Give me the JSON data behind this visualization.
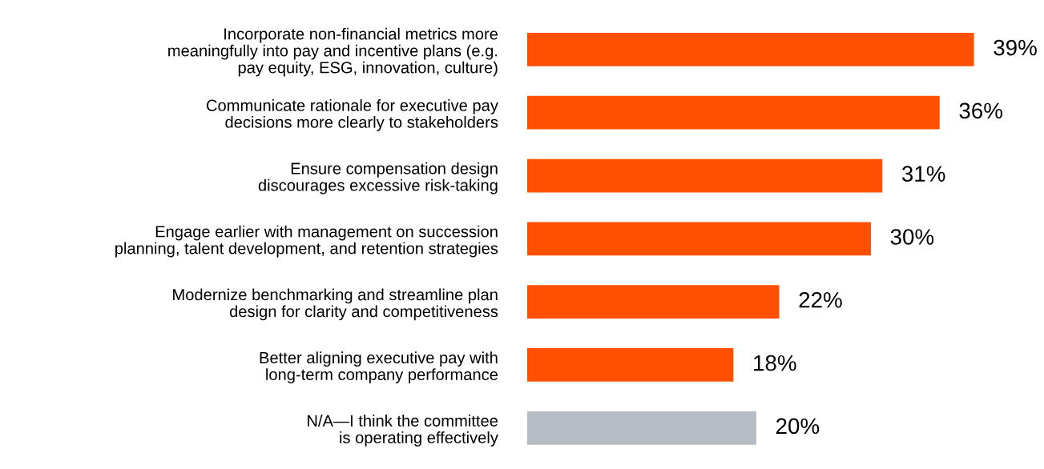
{
  "chart_data": {
    "type": "bar",
    "orientation": "horizontal",
    "categories": [
      "Incorporate non-financial metrics more\nmeaningfully into pay and incentive plans (e.g.\npay equity, ESG, innovation, culture)",
      "Communicate rationale for executive pay\ndecisions more clearly to stakeholders",
      "Ensure compensation design\ndiscourages excessive risk-taking",
      "Engage earlier with management on succession\nplanning, talent development, and retention strategies",
      "Modernize benchmarking and streamline plan\ndesign for clarity and competitiveness",
      "Better aligning executive pay with\nlong-term company performance",
      "N/A—I think the committee\nis operating effectively"
    ],
    "values": [
      39,
      36,
      31,
      30,
      22,
      18,
      20
    ],
    "value_labels": [
      "39%",
      "36%",
      "31%",
      "30%",
      "22%",
      "18%",
      "20%"
    ],
    "colors": [
      "#fe5000",
      "#fe5000",
      "#fe5000",
      "#fe5000",
      "#fe5000",
      "#fe5000",
      "#b6bcc3"
    ]
  }
}
